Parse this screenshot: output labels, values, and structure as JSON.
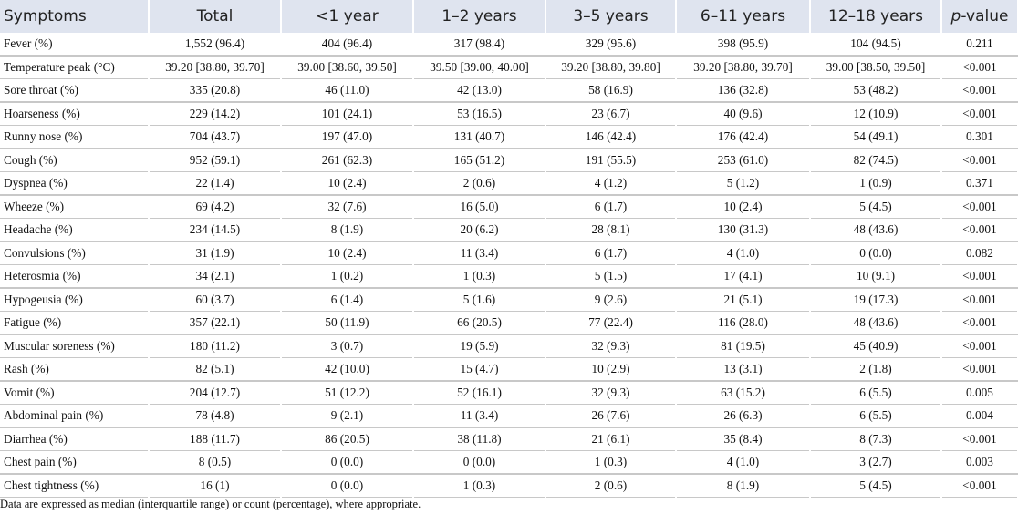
{
  "table": {
    "header": [
      "Symptoms",
      "Total",
      "<1 year",
      "1–2 years",
      "3–5 years",
      "6–11 years",
      "12–18 years",
      {
        "italic": "p",
        "rest": "-value"
      }
    ],
    "rows": [
      [
        "Fever (%)",
        "1,552 (96.4)",
        "404 (96.4)",
        "317 (98.4)",
        "329 (95.6)",
        "398 (95.9)",
        "104 (94.5)",
        "0.211"
      ],
      [
        "Temperature peak (°C)",
        "39.20 [38.80, 39.70]",
        "39.00 [38.60, 39.50]",
        "39.50 [39.00, 40.00]",
        "39.20 [38.80, 39.80]",
        "39.20 [38.80, 39.70]",
        "39.00 [38.50, 39.50]",
        "<0.001"
      ],
      [
        "Sore throat (%)",
        "335 (20.8)",
        "46 (11.0)",
        "42 (13.0)",
        "58 (16.9)",
        "136 (32.8)",
        "53 (48.2)",
        "<0.001"
      ],
      [
        "Hoarseness (%)",
        "229 (14.2)",
        "101 (24.1)",
        "53 (16.5)",
        "23 (6.7)",
        "40 (9.6)",
        "12 (10.9)",
        "<0.001"
      ],
      [
        "Runny nose (%)",
        "704 (43.7)",
        "197 (47.0)",
        "131 (40.7)",
        "146 (42.4)",
        "176 (42.4)",
        "54 (49.1)",
        "0.301"
      ],
      [
        "Cough (%)",
        "952 (59.1)",
        "261 (62.3)",
        "165 (51.2)",
        "191 (55.5)",
        "253 (61.0)",
        "82 (74.5)",
        "<0.001"
      ],
      [
        "Dyspnea (%)",
        "22 (1.4)",
        "10 (2.4)",
        "2 (0.6)",
        "4 (1.2)",
        "5 (1.2)",
        "1 (0.9)",
        "0.371"
      ],
      [
        "Wheeze (%)",
        "69 (4.2)",
        "32 (7.6)",
        "16 (5.0)",
        "6 (1.7)",
        "10 (2.4)",
        "5 (4.5)",
        "<0.001"
      ],
      [
        "Headache (%)",
        "234 (14.5)",
        "8 (1.9)",
        "20 (6.2)",
        "28 (8.1)",
        "130 (31.3)",
        "48 (43.6)",
        "<0.001"
      ],
      [
        "Convulsions (%)",
        "31 (1.9)",
        "10 (2.4)",
        "11 (3.4)",
        "6 (1.7)",
        "4 (1.0)",
        "0 (0.0)",
        "0.082"
      ],
      [
        "Heterosmia (%)",
        "34 (2.1)",
        "1 (0.2)",
        "1 (0.3)",
        "5 (1.5)",
        "17 (4.1)",
        "10 (9.1)",
        "<0.001"
      ],
      [
        "Hypogeusia (%)",
        "60 (3.7)",
        "6 (1.4)",
        "5 (1.6)",
        "9 (2.6)",
        "21 (5.1)",
        "19 (17.3)",
        "<0.001"
      ],
      [
        "Fatigue (%)",
        "357 (22.1)",
        "50 (11.9)",
        "66 (20.5)",
        "77 (22.4)",
        "116 (28.0)",
        "48 (43.6)",
        "<0.001"
      ],
      [
        "Muscular soreness (%)",
        "180 (11.2)",
        "3 (0.7)",
        "19 (5.9)",
        "32 (9.3)",
        "81 (19.5)",
        "45 (40.9)",
        "<0.001"
      ],
      [
        "Rash (%)",
        "82 (5.1)",
        "42 (10.0)",
        "15 (4.7)",
        "10 (2.9)",
        "13 (3.1)",
        "2 (1.8)",
        "<0.001"
      ],
      [
        "Vomit (%)",
        "204 (12.7)",
        "51 (12.2)",
        "52 (16.1)",
        "32 (9.3)",
        "63 (15.2)",
        "6 (5.5)",
        "0.005"
      ],
      [
        "Abdominal pain (%)",
        "78 (4.8)",
        "9 (2.1)",
        "11 (3.4)",
        "26 (7.6)",
        "26 (6.3)",
        "6 (5.5)",
        "0.004"
      ],
      [
        "Diarrhea (%)",
        "188 (11.7)",
        "86 (20.5)",
        "38 (11.8)",
        "21 (6.1)",
        "35 (8.4)",
        "8 (7.3)",
        "<0.001"
      ],
      [
        "Chest pain (%)",
        "8 (0.5)",
        "0 (0.0)",
        "0 (0.0)",
        "1 (0.3)",
        "4 (1.0)",
        "3 (2.7)",
        "0.003"
      ],
      [
        "Chest tightness (%)",
        "16 (1)",
        "0 (0.0)",
        "1 (0.3)",
        "2 (0.6)",
        "8 (1.9)",
        "5 (4.5)",
        "<0.001"
      ]
    ],
    "footnote": "Data are expressed as median (interquartile range) or count (percentage), where appropriate."
  }
}
